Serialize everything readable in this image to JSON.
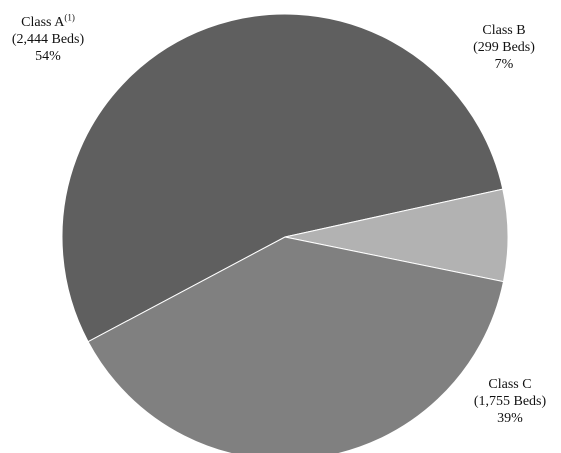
{
  "chart_data": {
    "type": "pie",
    "slices": [
      {
        "name": "Class A",
        "footnote": "(1)",
        "beds_label": "(2,444 Beds)",
        "value": 2444,
        "percent_label": "54%",
        "color": "#5f5f5f"
      },
      {
        "name": "Class B",
        "footnote": "",
        "beds_label": "(299 Beds)",
        "value": 299,
        "percent_label": "7%",
        "color": "#b2b2b2"
      },
      {
        "name": "Class C",
        "footnote": "",
        "beds_label": "(1,755 Beds)",
        "value": 1755,
        "percent_label": "39%",
        "color": "#808080"
      }
    ],
    "start_angle_deg": 208
  }
}
